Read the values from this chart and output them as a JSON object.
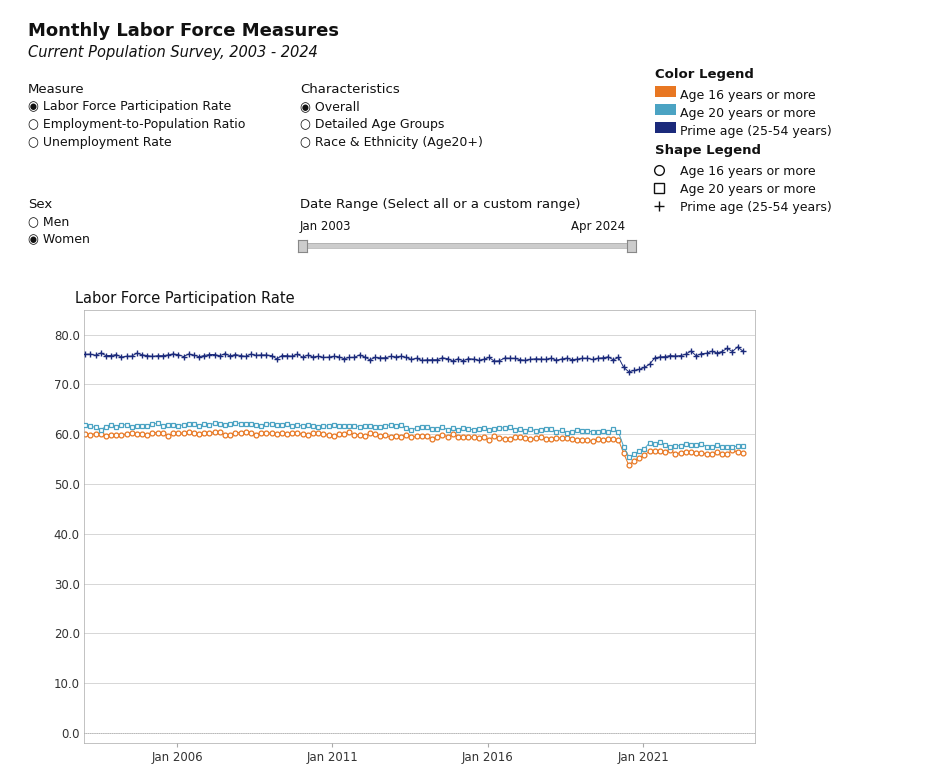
{
  "title": "Monthly Labor Force Measures",
  "subtitle": "Current Population Survey, 2003 - 2024",
  "chart_title": "Labor Force Participation Rate",
  "color_orange": "#E87722",
  "color_blue_light": "#4BA3C3",
  "color_blue_dark": "#1B2A7B",
  "color_legend_title": "Color Legend",
  "shape_legend_title": "Shape Legend",
  "color_legend_items": [
    "Age 16 years or more",
    "Age 20 years or more",
    "Prime age (25-54 years)"
  ],
  "shape_legend_items": [
    "Age 16 years or more",
    "Age 20 years or more",
    "Prime age (25-54 years)"
  ],
  "measure_label": "Measure",
  "measure_items": [
    "Labor Force Participation Rate",
    "Employment-to-Population Ratio",
    "Unemployment Rate"
  ],
  "measure_selected": 0,
  "characteristics_label": "Characteristics",
  "characteristics_items": [
    "Overall",
    "Detailed Age Groups",
    "Race & Ethnicity (Age20+)"
  ],
  "characteristics_selected": 0,
  "sex_label": "Sex",
  "sex_items": [
    "Men",
    "Women"
  ],
  "sex_selected": 1,
  "date_range_label": "Date Range (Select all or a custom range)",
  "date_start": "Jan 2003",
  "date_end": "Apr 2024",
  "yticks": [
    0.0,
    10.0,
    20.0,
    30.0,
    40.0,
    50.0,
    60.0,
    70.0,
    80.0
  ],
  "xtick_labels": [
    "Jan 2006",
    "Jan 2011",
    "Jan 2016",
    "Jan 2021"
  ],
  "xtick_years": [
    2006,
    2011,
    2016,
    2021
  ],
  "background_color": "#ffffff",
  "grid_color": "#d0d0d0",
  "text_color": "#333333",
  "box_color": "#cccccc"
}
